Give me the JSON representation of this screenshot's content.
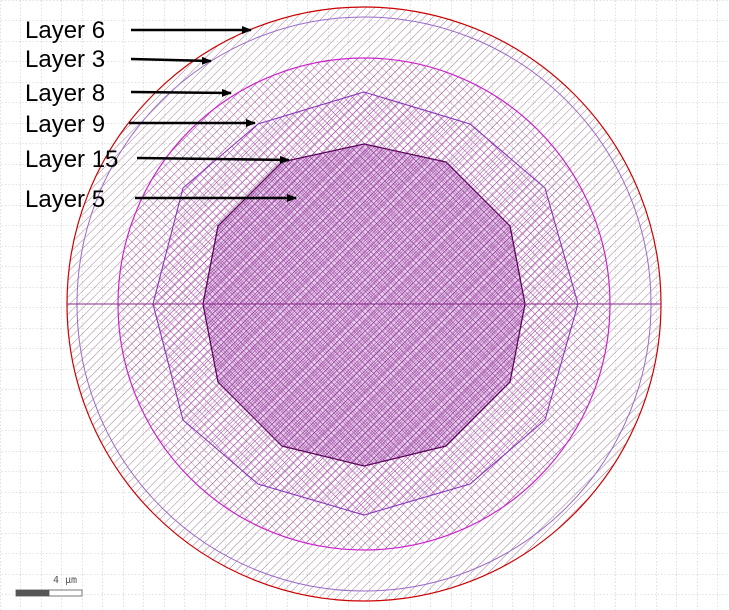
{
  "labels": [
    {
      "id": "layer-6",
      "text": "Layer 6"
    },
    {
      "id": "layer-3",
      "text": "Layer 3"
    },
    {
      "id": "layer-8",
      "text": "Layer 8"
    },
    {
      "id": "layer-9",
      "text": "Layer 9"
    },
    {
      "id": "layer-15",
      "text": "Layer 15"
    },
    {
      "id": "layer-5",
      "text": "Layer 5"
    }
  ],
  "scale_bar": {
    "text": "4 µm"
  },
  "colors": {
    "outer_circle": "#cc0000",
    "layer3_outline": "#9a6ac8",
    "layer3_hatch": "#7a4a6a",
    "layer8_outline": "#cc22cc",
    "layer8_hatch": "#b030b0",
    "layer9_outline": "#8833bb",
    "layer9_hatch": "#a030b0",
    "layer15_outline": "#550055",
    "layer15_hatch": "#7a1a7a",
    "grid": "#b0b0b0"
  }
}
